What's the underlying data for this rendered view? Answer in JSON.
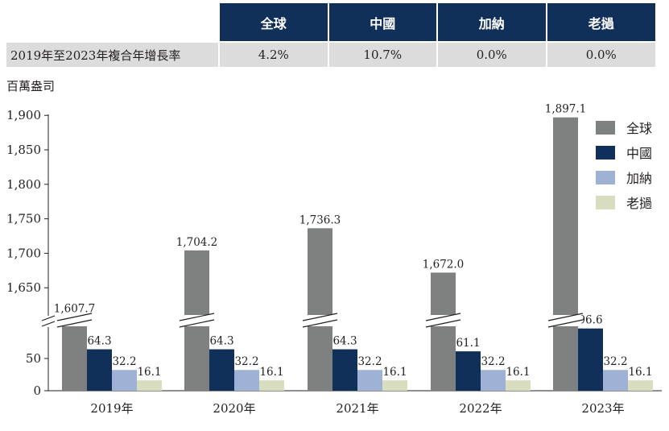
{
  "table": {
    "headers": [
      "全球",
      "中國",
      "加納",
      "老撾"
    ],
    "row_label": "2019年至2023年複合年增長率",
    "values": [
      "4.2%",
      "10.7%",
      "0.0%",
      "0.0%"
    ]
  },
  "chart_data": {
    "type": "bar",
    "unit_label": "百萬盎司",
    "categories": [
      "2019年",
      "2020年",
      "2021年",
      "2022年",
      "2023年"
    ],
    "series": [
      {
        "name": "全球",
        "color": "#7f8180",
        "values": [
          1607.7,
          1704.2,
          1736.3,
          1672.0,
          1897.1
        ],
        "labels": [
          "1,607.7",
          "1,704.2",
          "1,736.3",
          "1,672.0",
          "1,897.1"
        ]
      },
      {
        "name": "中國",
        "color": "#10305a",
        "values": [
          64.3,
          64.3,
          64.3,
          61.1,
          96.6
        ],
        "labels": [
          "64.3",
          "64.3",
          "64.3",
          "61.1",
          "96.6"
        ]
      },
      {
        "name": "加納",
        "color": "#9fb2d6",
        "values": [
          32.2,
          32.2,
          32.2,
          32.2,
          32.2
        ],
        "labels": [
          "32.2",
          "32.2",
          "32.2",
          "32.2",
          "32.2"
        ]
      },
      {
        "name": "老撾",
        "color": "#d9ddbf",
        "values": [
          16.1,
          16.1,
          16.1,
          16.1,
          16.1
        ],
        "labels": [
          "16.1",
          "16.1",
          "16.1",
          "16.1",
          "16.1"
        ]
      }
    ],
    "broken_axis": true,
    "lower_ticks": [
      0,
      50
    ],
    "upper_ticks": [
      1650,
      1700,
      1750,
      1800,
      1850,
      1900
    ],
    "tick_labels_lower": [
      "0",
      "50"
    ],
    "tick_labels_upper": [
      "1,650",
      "1,700",
      "1,750",
      "1,800",
      "1,850",
      "1,900"
    ],
    "lower_range": [
      0,
      100
    ],
    "upper_range": [
      1600,
      1900
    ],
    "legend_position": "top-right",
    "grid": false
  }
}
